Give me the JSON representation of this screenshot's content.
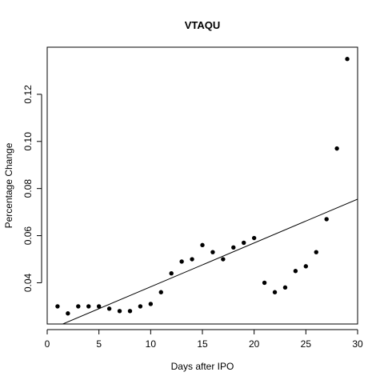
{
  "chart_data": {
    "type": "scatter",
    "title": "VTAQU",
    "xlabel": "Days after IPO",
    "ylabel": "Percentage Change",
    "xlim": [
      0,
      30
    ],
    "ylim": [
      0.0225,
      0.14
    ],
    "x_ticks": [
      0,
      5,
      10,
      15,
      20,
      25,
      30
    ],
    "x_tick_labels": [
      "0",
      "5",
      "10",
      "15",
      "20",
      "25",
      "30"
    ],
    "y_ticks": [
      0.04,
      0.06,
      0.08,
      0.1,
      0.12
    ],
    "y_tick_labels": [
      "0.04",
      "0.06",
      "0.08",
      "0.10",
      "0.12"
    ],
    "grid": false,
    "series": [
      {
        "x": [
          1,
          2,
          3,
          4,
          5,
          6,
          7,
          8,
          9,
          10,
          11,
          12,
          13,
          14,
          15,
          16,
          17,
          18,
          19,
          20,
          21,
          22,
          23,
          24,
          25,
          26,
          27,
          28,
          29
        ],
        "y": [
          0.03,
          0.027,
          0.03,
          0.03,
          0.03,
          0.029,
          0.028,
          0.028,
          0.03,
          0.031,
          0.036,
          0.044,
          0.049,
          0.05,
          0.056,
          0.053,
          0.05,
          0.055,
          0.057,
          0.059,
          0.04,
          0.036,
          0.038,
          0.045,
          0.047,
          0.053,
          0.067,
          0.097,
          0.135
        ]
      }
    ],
    "trend_line": {
      "x": [
        0,
        30
      ],
      "y": [
        0.0197,
        0.0755
      ]
    },
    "colors": {
      "points": "#000000",
      "line": "#000000",
      "axes": "#000000"
    }
  }
}
